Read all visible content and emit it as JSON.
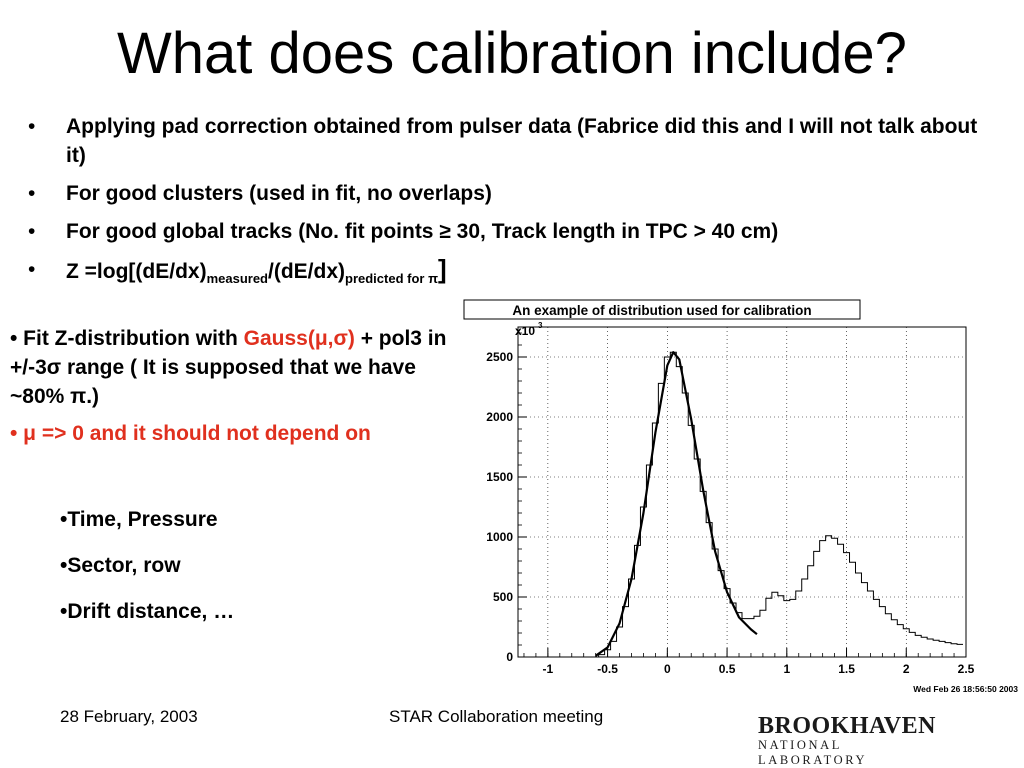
{
  "slide": {
    "title": "What does calibration include?",
    "bullets": [
      "Applying pad correction obtained from pulser data (Fabrice did this and I will not talk about it)",
      "For good clusters (used in fit, no overlaps)",
      "For good global tracks (No. fit points ≥ 30, Track length in TPC > 40 cm)"
    ],
    "bullet_char": "•",
    "z_formula": {
      "prefix": "Z =log[(dE/dx)",
      "sub1": "measured",
      "mid": "/(dE/dx)",
      "sub2": "predicted for π",
      "suffix": "]"
    },
    "fit": {
      "line1_start": "• Fit Z-distribution with ",
      "line1_red": "Gauss(μ,σ)",
      "line1_end": " + pol3 in +/-3σ range ( It is supposed that we have ~80% π.)"
    },
    "mu_line": "• μ => 0 and it should not depend on",
    "sub_items": [
      "•Time, Pressure",
      "•Sector, row",
      "•Drift distance, …"
    ],
    "footer": {
      "date": "28 February, 2003",
      "meeting": "STAR Collaboration  meeting",
      "logo_top": "BROOKHAVEN",
      "logo_bottom": "NATIONAL LABORATORY"
    }
  },
  "chart_data": {
    "type": "line",
    "title": "An example of distribution used for calibration",
    "ylabel_multiplier": "x10",
    "ylabel_exponent": "3",
    "timestamp": "Wed Feb 26 18:56:50 2003",
    "xlim": [
      -1.25,
      2.5
    ],
    "ylim": [
      0,
      2750
    ],
    "grid": true,
    "x_ticks": [
      -1,
      -0.5,
      0,
      0.5,
      1,
      1.5,
      2,
      2.5
    ],
    "x_tick_labels": [
      "-1",
      "-0.5",
      "0",
      "0.5",
      "1",
      "1.5",
      "2",
      "2.5"
    ],
    "y_ticks": [
      0,
      500,
      1000,
      1500,
      2000,
      2500
    ],
    "y_tick_labels": [
      "0",
      "500",
      "1000",
      "1500",
      "2000",
      "2500"
    ],
    "series": [
      {
        "kind": "histogram",
        "x": [
          -0.55,
          -0.5,
          -0.45,
          -0.4,
          -0.35,
          -0.3,
          -0.25,
          -0.2,
          -0.15,
          -0.1,
          -0.05,
          0,
          0.05,
          0.1,
          0.15,
          0.2,
          0.25,
          0.3,
          0.35,
          0.4,
          0.45,
          0.5,
          0.55,
          0.6,
          0.65,
          0.7,
          0.75,
          0.8,
          0.85,
          0.9,
          0.95,
          1,
          1.05,
          1.1,
          1.15,
          1.2,
          1.25,
          1.3,
          1.35,
          1.4,
          1.45,
          1.5,
          1.55,
          1.6,
          1.65,
          1.7,
          1.75,
          1.8,
          1.85,
          1.9,
          1.95,
          2,
          2.05,
          2.1,
          2.15,
          2.2,
          2.25,
          2.3,
          2.35,
          2.4,
          2.45
        ],
        "values": [
          20,
          60,
          130,
          250,
          420,
          650,
          930,
          1250,
          1600,
          1950,
          2280,
          2500,
          2540,
          2420,
          2200,
          1930,
          1650,
          1380,
          1120,
          900,
          720,
          570,
          450,
          370,
          320,
          320,
          340,
          390,
          490,
          540,
          510,
          470,
          480,
          550,
          650,
          760,
          880,
          970,
          1010,
          990,
          940,
          870,
          790,
          700,
          620,
          550,
          480,
          420,
          360,
          310,
          270,
          235,
          205,
          180,
          165,
          150,
          140,
          130,
          120,
          110,
          105
        ]
      },
      {
        "kind": "fit",
        "x": [
          -0.6,
          -0.5,
          -0.4,
          -0.3,
          -0.2,
          -0.1,
          0,
          0.05,
          0.1,
          0.2,
          0.3,
          0.4,
          0.5,
          0.6,
          0.7,
          0.75
        ],
        "values": [
          10,
          80,
          280,
          650,
          1200,
          1870,
          2430,
          2540,
          2480,
          1980,
          1390,
          880,
          540,
          330,
          230,
          190
        ]
      }
    ]
  }
}
